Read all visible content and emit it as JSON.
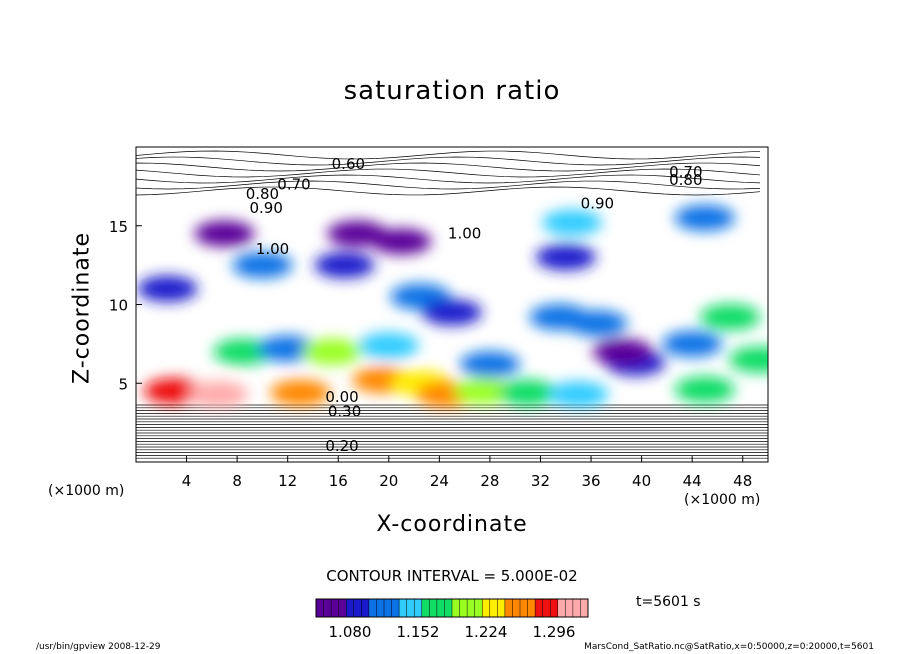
{
  "chart_data": {
    "type": "heatmap",
    "title": "saturation ratio",
    "xlabel": "X-coordinate",
    "ylabel": "Z-coordinate",
    "x_unit": "(×1000 m)",
    "y_unit": "(×1000 m)",
    "xlim": [
      0,
      50
    ],
    "ylim": [
      0,
      20
    ],
    "x_ticks": [
      4,
      8,
      12,
      16,
      20,
      24,
      28,
      32,
      36,
      40,
      44,
      48
    ],
    "y_ticks": [
      5,
      10,
      15
    ],
    "contour_interval_text": "CONTOUR INTERVAL = 5.000E-02",
    "colorbar": {
      "range": [
        1.044,
        1.332
      ],
      "tick_values": [
        1.08,
        1.152,
        1.224,
        1.296
      ],
      "tick_labels": [
        "1.080",
        "1.152",
        "1.224",
        "1.296"
      ]
    },
    "contour_labels": [
      {
        "text": "0.60",
        "x": 16.8,
        "z": 18.6
      },
      {
        "text": "0.70",
        "x": 12.5,
        "z": 17.3
      },
      {
        "text": "0.80",
        "x": 10.0,
        "z": 16.7
      },
      {
        "text": "0.90",
        "x": 10.3,
        "z": 15.8
      },
      {
        "text": "0.70",
        "x": 43.5,
        "z": 18.1
      },
      {
        "text": "0.80",
        "x": 43.5,
        "z": 17.6
      },
      {
        "text": "0.90",
        "x": 36.5,
        "z": 16.1
      },
      {
        "text": "1.00",
        "x": 26.0,
        "z": 14.2
      },
      {
        "text": "1.00",
        "x": 10.8,
        "z": 13.2
      },
      {
        "text": "0.00",
        "x": 16.3,
        "z": 3.8
      },
      {
        "text": "0.30",
        "x": 16.5,
        "z": 2.9
      },
      {
        "text": "0.20",
        "x": 16.3,
        "z": 0.7
      }
    ],
    "regions": [
      {
        "x": 3.0,
        "z": 4.5,
        "value": 1.3
      },
      {
        "x": 6.5,
        "z": 4.3,
        "value": 1.32
      },
      {
        "x": 13.0,
        "z": 4.4,
        "value": 1.26
      },
      {
        "x": 19.5,
        "z": 5.2,
        "value": 1.25
      },
      {
        "x": 22.5,
        "z": 5.0,
        "value": 1.22
      },
      {
        "x": 24.5,
        "z": 4.3,
        "value": 1.27
      },
      {
        "x": 27.5,
        "z": 4.5,
        "value": 1.2
      },
      {
        "x": 31.0,
        "z": 4.4,
        "value": 1.18
      },
      {
        "x": 35.0,
        "z": 4.3,
        "value": 1.15
      },
      {
        "x": 45.0,
        "z": 4.6,
        "value": 1.16
      },
      {
        "x": 49.3,
        "z": 6.5,
        "value": 1.18
      },
      {
        "x": 8.5,
        "z": 7.0,
        "value": 1.17
      },
      {
        "x": 12.0,
        "z": 7.2,
        "value": 1.12
      },
      {
        "x": 15.5,
        "z": 7.0,
        "value": 1.2
      },
      {
        "x": 20.0,
        "z": 7.4,
        "value": 1.14
      },
      {
        "x": 28.0,
        "z": 6.2,
        "value": 1.12
      },
      {
        "x": 39.5,
        "z": 6.3,
        "value": 1.1
      },
      {
        "x": 44.0,
        "z": 7.5,
        "value": 1.13
      },
      {
        "x": 2.5,
        "z": 11.0,
        "value": 1.1
      },
      {
        "x": 10.0,
        "z": 12.5,
        "value": 1.11
      },
      {
        "x": 16.5,
        "z": 12.5,
        "value": 1.1
      },
      {
        "x": 22.5,
        "z": 10.5,
        "value": 1.12
      },
      {
        "x": 25.0,
        "z": 9.5,
        "value": 1.1
      },
      {
        "x": 33.5,
        "z": 9.2,
        "value": 1.12
      },
      {
        "x": 36.5,
        "z": 8.8,
        "value": 1.11
      },
      {
        "x": 47.0,
        "z": 9.2,
        "value": 1.16
      },
      {
        "x": 34.0,
        "z": 13.0,
        "value": 1.08
      },
      {
        "x": 34.5,
        "z": 15.2,
        "value": 1.14
      },
      {
        "x": 45.0,
        "z": 15.5,
        "value": 1.12
      },
      {
        "x": 7.0,
        "z": 14.5,
        "value": 1.04
      },
      {
        "x": 17.5,
        "z": 14.5,
        "value": 1.04
      },
      {
        "x": 21.0,
        "z": 14.0,
        "value": 1.04
      },
      {
        "x": 38.5,
        "z": 7.0,
        "value": 1.04
      }
    ]
  },
  "labels": {
    "x_unit": "(×1000 m)",
    "y_unit": "(×1000 m)",
    "time_text": "t=5601 s",
    "footer_left": "/usr/bin/gpview   2008-12-29",
    "footer_right": "MarsCond_SatRatio.nc@SatRatio,x=0:50000,z=0:20000,t=5601"
  },
  "colors": {
    "colorbar_stops": [
      "#5a0099",
      "#1a1acc",
      "#0b73e6",
      "#33ccff",
      "#11dd66",
      "#99ff22",
      "#ffee00",
      "#ff8800",
      "#ee1111",
      "#ffaaaa"
    ]
  }
}
